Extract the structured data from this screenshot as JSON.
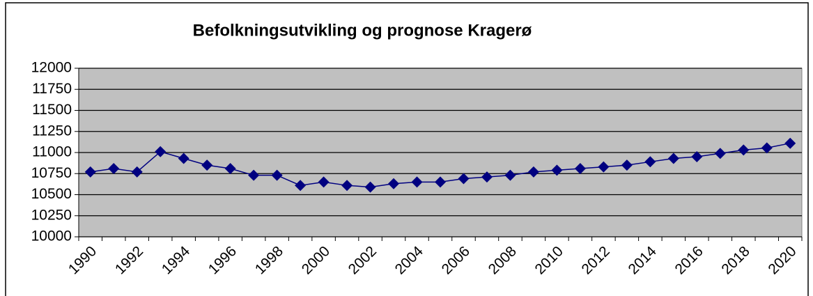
{
  "chart_data": {
    "type": "line",
    "title": "Befolkningsutvikling og prognose Kragerø",
    "categories": [
      "1990",
      null,
      "1992",
      null,
      "1994",
      null,
      "1996",
      null,
      "1998",
      null,
      "2000",
      null,
      "2002",
      null,
      "2004",
      null,
      "2006",
      null,
      "2008",
      null,
      "2010",
      null,
      "2012",
      null,
      "2014",
      null,
      "2016",
      null,
      "2018",
      null,
      "2020"
    ],
    "series": [
      {
        "name": "Kragerø",
        "color": "#000080",
        "values": [
          10770,
          10810,
          10770,
          11010,
          10930,
          10850,
          10810,
          10730,
          10730,
          10610,
          10650,
          10610,
          10590,
          10630,
          10650,
          10650,
          10690,
          10710,
          10730,
          10770,
          10790,
          10810,
          10830,
          10850,
          10890,
          10930,
          10950,
          10990,
          11030,
          11055,
          11110
        ]
      }
    ],
    "ylim": [
      10000,
      12000
    ],
    "yticks": [
      10000,
      10250,
      10500,
      10750,
      11000,
      11250,
      11500,
      11750,
      12000
    ],
    "grid": true
  }
}
